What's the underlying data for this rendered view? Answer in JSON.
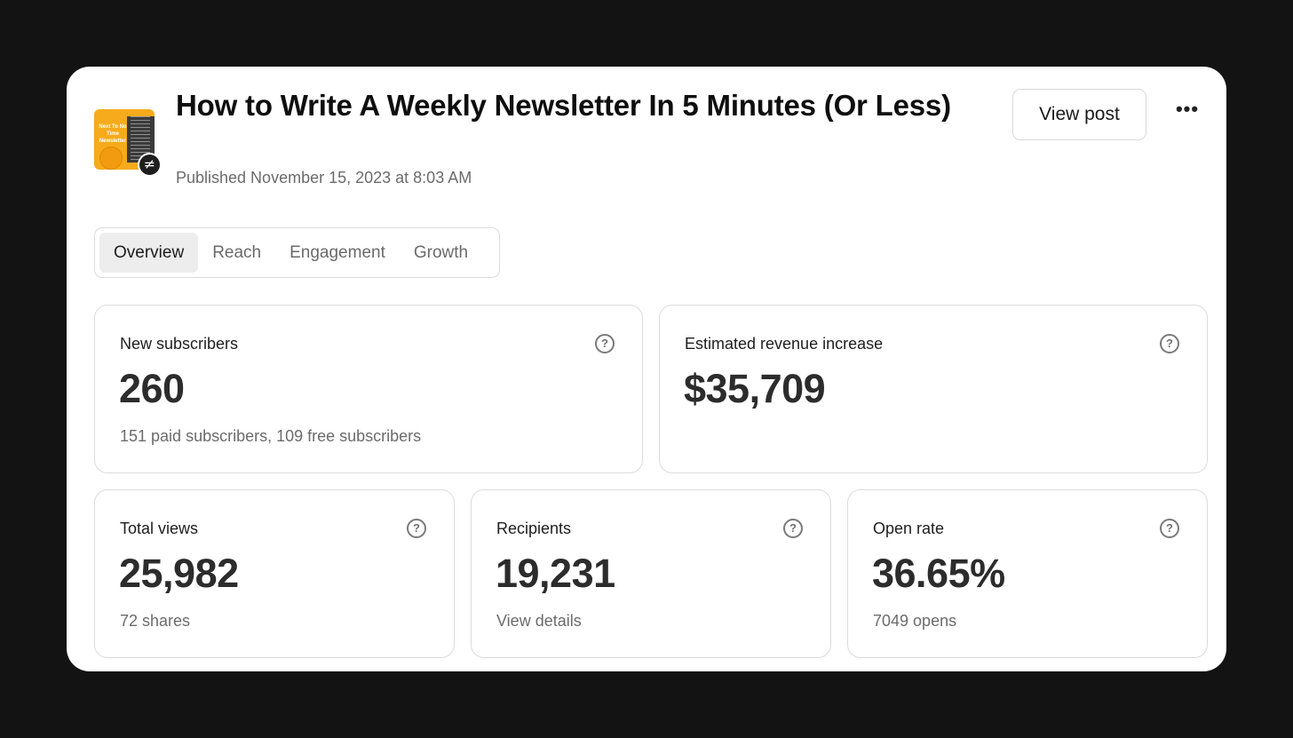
{
  "post": {
    "title": "How to Write A Weekly Newsletter In 5 Minutes (Or Less)",
    "published": "Published November 15, 2023 at 8:03 AM",
    "thumbnail_text": "Next To No Time Newsletter",
    "badge_glyph": "≠"
  },
  "header": {
    "view_post_label": "View post",
    "more_glyph": "•••"
  },
  "tabs": [
    {
      "label": "Overview",
      "active": true
    },
    {
      "label": "Reach",
      "active": false
    },
    {
      "label": "Engagement",
      "active": false
    },
    {
      "label": "Growth",
      "active": false
    }
  ],
  "stats": {
    "new_subscribers": {
      "label": "New subscribers",
      "value": "260",
      "sub": "151 paid subscribers, 109 free subscribers"
    },
    "revenue": {
      "label": "Estimated revenue increase",
      "value": "$35,709"
    },
    "total_views": {
      "label": "Total views",
      "value": "25,982",
      "sub": "72 shares"
    },
    "recipients": {
      "label": "Recipients",
      "value": "19,231",
      "sub": "View details"
    },
    "open_rate": {
      "label": "Open rate",
      "value": "36.65%",
      "sub": "7049 opens"
    }
  },
  "icons": {
    "help": "?"
  },
  "colors": {
    "background": "#131313",
    "card": "#ffffff",
    "thumbnail": "#f6ab1c"
  }
}
